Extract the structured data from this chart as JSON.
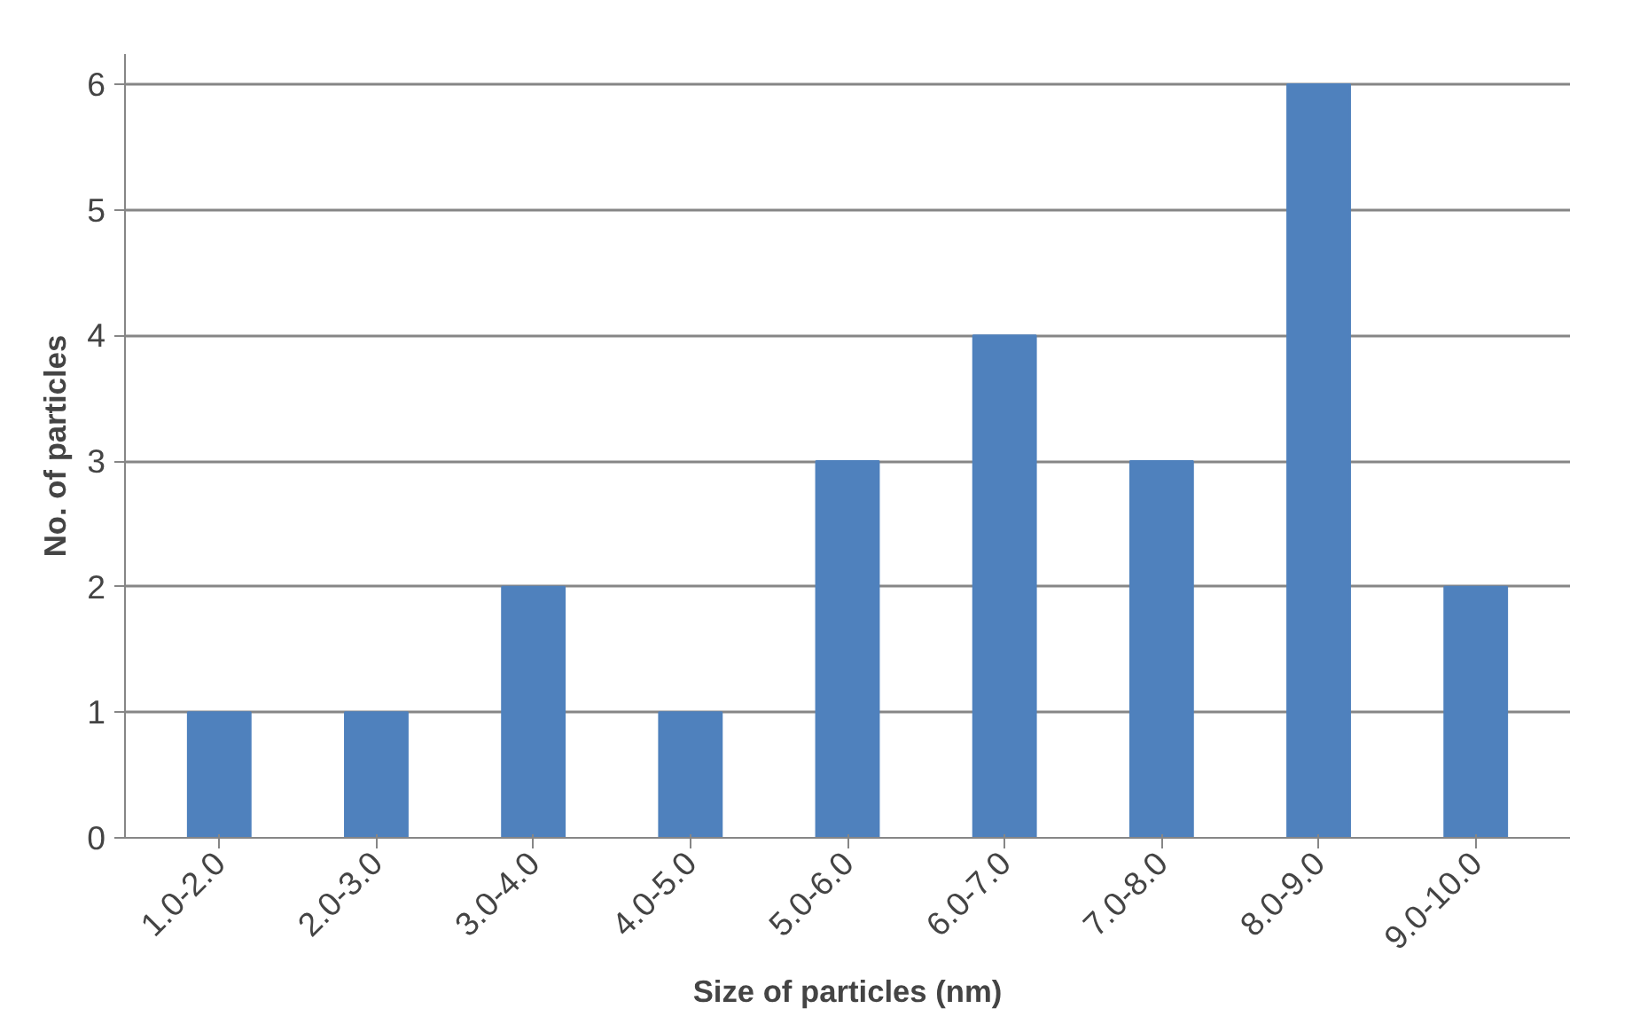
{
  "chart_data": {
    "type": "bar",
    "xlabel": "Size of particles (nm)",
    "ylabel": "No. of particles",
    "categories": [
      "1.0-2.0",
      "2.0-3.0",
      "3.0-4.0",
      "4.0-5.0",
      "5.0-6.0",
      "6.0-7.0",
      "7.0-8.0",
      "8.0-9.0",
      "9.0-10.0"
    ],
    "values": [
      1,
      1,
      2,
      1,
      3,
      4,
      3,
      6,
      2
    ],
    "color": "#4f81bd",
    "ylim": [
      0,
      6
    ],
    "yticks": [
      0,
      1,
      2,
      3,
      4,
      5,
      6
    ],
    "grid": "y"
  }
}
